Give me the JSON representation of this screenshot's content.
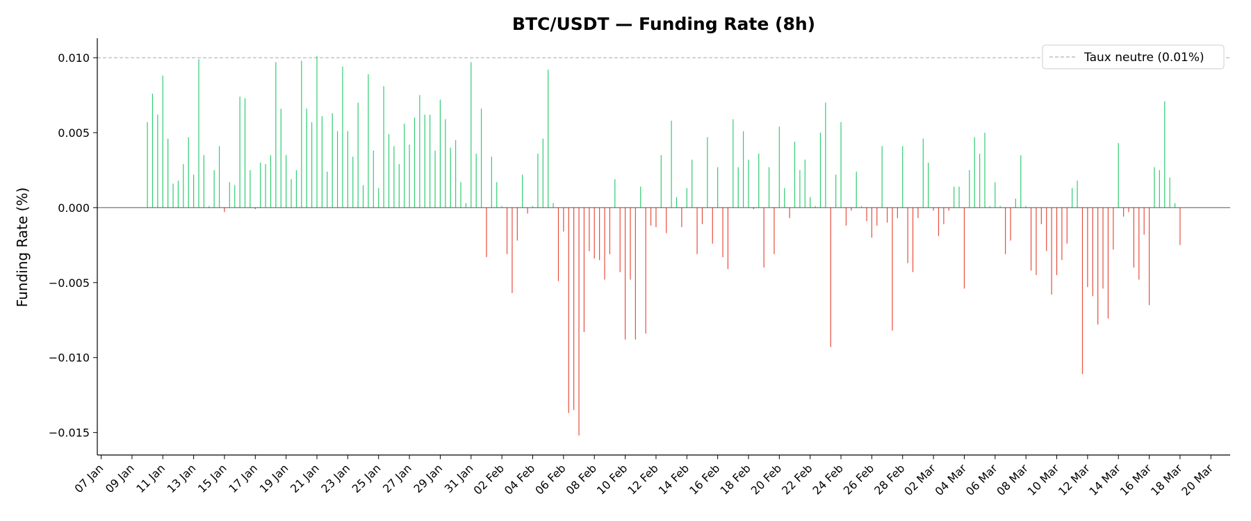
{
  "chart_data": {
    "type": "bar",
    "title": "BTC/USDT — Funding Rate (8h)",
    "xlabel": "",
    "ylabel": "Funding Rate (%)",
    "x_start": "2024-01-07",
    "x_end": "2024-03-20",
    "xlim": [
      "2024-01-06 18:00",
      "2024-03-20 06:00"
    ],
    "ylim": [
      -0.0165,
      0.0113
    ],
    "yticks": [
      0.01,
      0.005,
      0.0,
      -0.005,
      -0.01,
      -0.015
    ],
    "ytick_labels": [
      "0.010",
      "0.005",
      "0.000",
      "−0.005",
      "−0.010",
      "−0.015"
    ],
    "xtick_labels": [
      "07 Jan",
      "09 Jan",
      "11 Jan",
      "13 Jan",
      "15 Jan",
      "17 Jan",
      "19 Jan",
      "21 Jan",
      "23 Jan",
      "25 Jan",
      "27 Jan",
      "29 Jan",
      "31 Jan",
      "02 Feb",
      "04 Feb",
      "06 Feb",
      "08 Feb",
      "10 Feb",
      "12 Feb",
      "14 Feb",
      "16 Feb",
      "18 Feb",
      "20 Feb",
      "22 Feb",
      "24 Feb",
      "26 Feb",
      "28 Feb",
      "02 Mar",
      "04 Mar",
      "06 Mar",
      "08 Mar",
      "10 Mar",
      "12 Mar",
      "14 Mar",
      "16 Mar",
      "18 Mar",
      "20 Mar"
    ],
    "reference_line": {
      "value": 0.01,
      "label": "Taux neutre (0.01%)",
      "color": "#b0b0b0"
    },
    "zero_line_color": "#555555",
    "positive_color": "#2ecc71",
    "negative_color": "#e74c3c",
    "legend_position": "top-right",
    "grid": false,
    "series": [
      {
        "interval": "8h",
        "first_timestamp": "2024-01-10 00:00",
        "values": [
          0.0057,
          0.0076,
          0.0062,
          0.0088,
          0.0046,
          0.0016,
          0.0018,
          0.0029,
          0.0047,
          0.0022,
          0.0099,
          0.0035,
          0.0001,
          0.0025,
          0.0041,
          -0.0003,
          0.0017,
          0.0015,
          0.0074,
          0.0073,
          0.0025,
          -0.0001,
          0.003,
          0.0029,
          0.0035,
          0.0097,
          0.0066,
          0.0035,
          0.0019,
          0.0025,
          0.0098,
          0.0066,
          0.0057,
          0.0101,
          0.0061,
          0.0024,
          0.0063,
          0.0051,
          0.0094,
          0.0051,
          0.0034,
          0.007,
          0.0015,
          0.0089,
          0.0038,
          0.0013,
          0.0081,
          0.0049,
          0.0041,
          0.0029,
          0.0056,
          0.0042,
          0.006,
          0.0075,
          0.0062,
          0.0062,
          0.0038,
          0.0072,
          0.0059,
          0.004,
          0.0045,
          0.0017,
          0.0003,
          0.0097,
          0.0036,
          0.0066,
          -0.0033,
          0.0034,
          0.0017,
          0.0001,
          -0.0031,
          -0.0057,
          -0.0022,
          0.0022,
          -0.0004,
          0.0001,
          0.0036,
          0.0046,
          0.0092,
          0.0003,
          -0.0049,
          -0.0016,
          -0.0137,
          -0.0135,
          -0.0152,
          -0.0083,
          -0.0029,
          -0.0034,
          -0.0035,
          -0.0048,
          -0.0031,
          0.0019,
          -0.0043,
          -0.0088,
          -0.0048,
          -0.0088,
          0.0014,
          -0.0084,
          -0.0012,
          -0.0013,
          0.0035,
          -0.0017,
          0.0058,
          0.0007,
          -0.0013,
          0.0013,
          0.0032,
          -0.0031,
          -0.0011,
          0.0047,
          -0.0024,
          0.0027,
          -0.0033,
          -0.0041,
          0.0059,
          0.0027,
          0.0051,
          0.0032,
          -0.0001,
          0.0036,
          -0.004,
          0.0027,
          -0.0031,
          0.0054,
          0.0013,
          -0.0007,
          0.0044,
          0.0025,
          0.0032,
          0.0007,
          0.0001,
          0.005,
          0.007,
          -0.0093,
          0.0022,
          0.0057,
          -0.0012,
          -0.0002,
          0.0024,
          0.0001,
          -0.0009,
          -0.002,
          -0.0012,
          0.0041,
          -0.001,
          -0.0082,
          -0.0007,
          0.0041,
          -0.0037,
          -0.0043,
          -0.0007,
          0.0046,
          0.003,
          -0.0002,
          -0.0019,
          -0.0011,
          -0.0002,
          0.0014,
          0.0014,
          -0.0054,
          0.0025,
          0.0047,
          0.0036,
          0.005,
          0.0001,
          0.0017,
          0.0001,
          -0.0031,
          -0.0022,
          0.0006,
          0.0035,
          0.0001,
          -0.0042,
          -0.0045,
          -0.0011,
          -0.0029,
          -0.0058,
          -0.0045,
          -0.0035,
          -0.0024,
          0.0013,
          0.0018,
          -0.0111,
          -0.0053,
          -0.0059,
          -0.0078,
          -0.0054,
          -0.0074,
          -0.0028,
          0.0043,
          -0.0006,
          -0.0003,
          -0.004,
          -0.0048,
          -0.0018,
          -0.0065,
          0.0027,
          0.0025,
          0.0071,
          0.002,
          0.0003,
          -0.0025
        ]
      }
    ]
  }
}
